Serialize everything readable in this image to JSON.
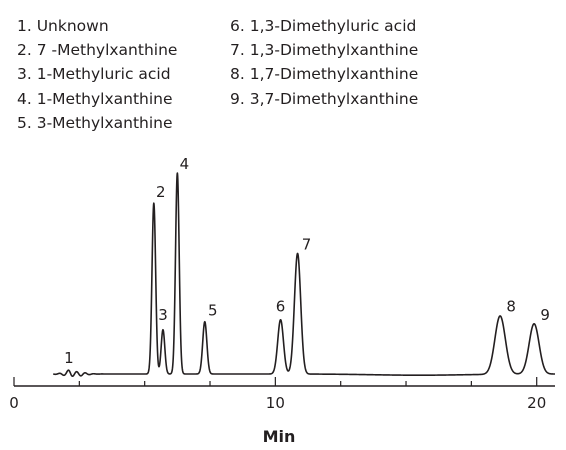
{
  "legend": {
    "col1": [
      "1. Unknown",
      "2. 7 -Methylxanthine",
      "3. 1-Methyluric acid",
      "4. 1-Methylxanthine",
      "5. 3-Methylxanthine"
    ],
    "col2": [
      "6. 1,3-Dimethyluric acid",
      "7. 1,3-Dimethylxanthine",
      "8. 1,7-Dimethylxanthine",
      "9. 3,7-Dimethylxanthine"
    ]
  },
  "chart_data": {
    "type": "line",
    "title": "",
    "xlabel": "Min",
    "ylabel": "",
    "xlim": [
      0,
      20.7
    ],
    "ylim": [
      0,
      1
    ],
    "x_ticks": [
      0,
      10,
      20
    ],
    "x_tick_labels": [
      "0",
      "10",
      "20"
    ],
    "trace_start": 1.5,
    "trace_end": 20.7,
    "grid": false,
    "line_color": "#231f20",
    "peaks": [
      {
        "label": "1",
        "rt": 2.1,
        "height": 0.01,
        "width": 0.06
      },
      {
        "label": "2",
        "rt": 5.35,
        "height": 0.85,
        "width": 0.07
      },
      {
        "label": "3",
        "rt": 5.7,
        "height": 0.22,
        "width": 0.07
      },
      {
        "label": "4",
        "rt": 6.25,
        "height": 1.0,
        "width": 0.07
      },
      {
        "label": "5",
        "rt": 7.3,
        "height": 0.26,
        "width": 0.08
      },
      {
        "label": "6",
        "rt": 10.2,
        "height": 0.27,
        "width": 0.11
      },
      {
        "label": "7",
        "rt": 10.85,
        "height": 0.6,
        "width": 0.12
      },
      {
        "label": "8",
        "rt": 18.6,
        "height": 0.29,
        "width": 0.2
      },
      {
        "label": "9",
        "rt": 19.9,
        "height": 0.25,
        "width": 0.19
      }
    ]
  }
}
